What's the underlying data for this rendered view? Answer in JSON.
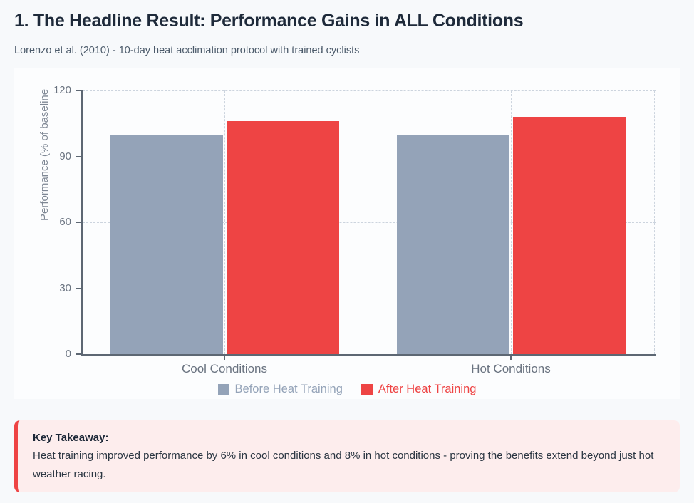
{
  "page": {
    "title": "1. The Headline Result: Performance Gains in ALL Conditions",
    "subtitle": "Lorenzo et al. (2010) - 10-day heat acclimation protocol with trained cyclists"
  },
  "chart_data": {
    "type": "bar",
    "categories": [
      "Cool Conditions",
      "Hot Conditions"
    ],
    "series": [
      {
        "name": "Before Heat Training",
        "color": "#94a3b8",
        "values": [
          100,
          100
        ]
      },
      {
        "name": "After Heat Training",
        "color": "#ee4444",
        "values": [
          106,
          108
        ]
      }
    ],
    "title": "",
    "xlabel": "",
    "ylabel": "Performance (% of baseline",
    "ylim": [
      0,
      120
    ],
    "yticks": [
      0,
      30,
      60,
      90,
      120
    ],
    "grid": "dashed",
    "legend_position": "bottom"
  },
  "takeaway": {
    "heading": "Key Takeaway:",
    "body": "Heat training improved performance by 6% in cool conditions and 8% in hot conditions - proving the benefits extend beyond just hot weather racing."
  },
  "colors": {
    "accent_red": "#ee4444",
    "accent_gray": "#94a3b8",
    "takeaway_bg": "#fdeded",
    "axis": "#5d6773",
    "gridline": "#ccd4de"
  }
}
